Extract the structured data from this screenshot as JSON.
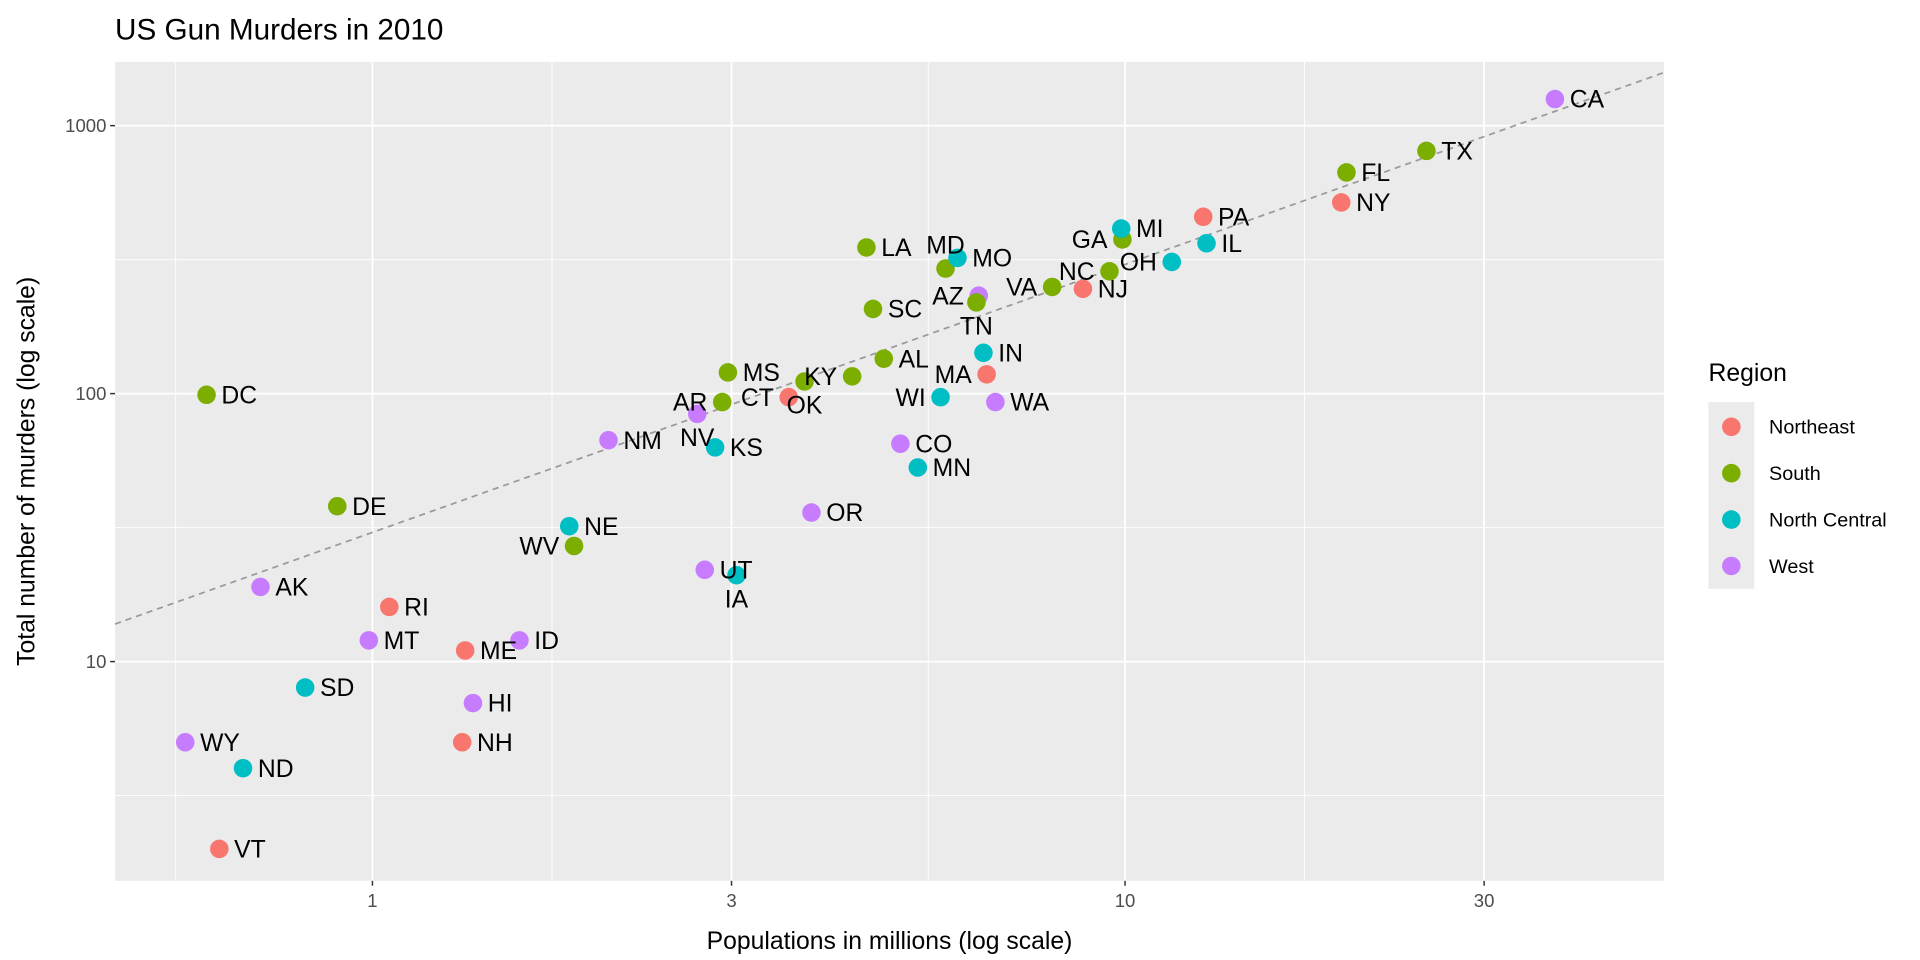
{
  "chart_data": {
    "type": "scatter",
    "title": "US Gun Murders in 2010",
    "xlabel": "Populations in millions (log scale)",
    "ylabel": "Total number of murders (log scale)",
    "x_scale": "log10",
    "y_scale": "log10",
    "xlim": [
      0.455,
      52
    ],
    "ylim": [
      1.52,
      1730
    ],
    "x_ticks": [
      {
        "value": 1,
        "label": "1"
      },
      {
        "value": 3,
        "label": "3"
      },
      {
        "value": 10,
        "label": "10"
      },
      {
        "value": 30,
        "label": "30"
      }
    ],
    "y_ticks": [
      {
        "value": 10,
        "label": "10"
      },
      {
        "value": 100,
        "label": "100"
      },
      {
        "value": 1000,
        "label": "1000"
      }
    ],
    "grid": true,
    "reference_line": {
      "type": "y = r * x",
      "r_per_million": 30.35,
      "style": "dashed",
      "color": "#999999"
    },
    "legend": {
      "title": "Region",
      "placement": "right",
      "entries": [
        {
          "name": "Northeast",
          "color": "#F8766D"
        },
        {
          "name": "South",
          "color": "#7CAE00"
        },
        {
          "name": "North Central",
          "color": "#00BFC4"
        },
        {
          "name": "West",
          "color": "#C77CFF"
        }
      ]
    },
    "points": [
      {
        "label": "AL",
        "x": 4.78,
        "y": 135,
        "region": "South"
      },
      {
        "label": "AK",
        "x": 0.71,
        "y": 19,
        "region": "West"
      },
      {
        "label": "AZ",
        "x": 6.392,
        "y": 232,
        "region": "West"
      },
      {
        "label": "AR",
        "x": 2.916,
        "y": 93,
        "region": "South"
      },
      {
        "label": "CA",
        "x": 37.254,
        "y": 1257,
        "region": "West"
      },
      {
        "label": "CO",
        "x": 5.029,
        "y": 65,
        "region": "West"
      },
      {
        "label": "CT",
        "x": 3.574,
        "y": 97,
        "region": "Northeast"
      },
      {
        "label": "DE",
        "x": 0.898,
        "y": 38,
        "region": "South"
      },
      {
        "label": "DC",
        "x": 0.602,
        "y": 99,
        "region": "South"
      },
      {
        "label": "FL",
        "x": 19.688,
        "y": 669,
        "region": "South"
      },
      {
        "label": "GA",
        "x": 9.92,
        "y": 376,
        "region": "South"
      },
      {
        "label": "HI",
        "x": 1.36,
        "y": 7,
        "region": "West"
      },
      {
        "label": "ID",
        "x": 1.568,
        "y": 12,
        "region": "West"
      },
      {
        "label": "IL",
        "x": 12.831,
        "y": 364,
        "region": "North Central"
      },
      {
        "label": "IN",
        "x": 6.484,
        "y": 142,
        "region": "North Central"
      },
      {
        "label": "IA",
        "x": 3.046,
        "y": 21,
        "region": "North Central"
      },
      {
        "label": "KS",
        "x": 2.853,
        "y": 63,
        "region": "North Central"
      },
      {
        "label": "KY",
        "x": 4.339,
        "y": 116,
        "region": "South"
      },
      {
        "label": "LA",
        "x": 4.533,
        "y": 351,
        "region": "South"
      },
      {
        "label": "ME",
        "x": 1.328,
        "y": 11,
        "region": "Northeast"
      },
      {
        "label": "MD",
        "x": 5.774,
        "y": 293,
        "region": "South"
      },
      {
        "label": "MA",
        "x": 6.548,
        "y": 118,
        "region": "Northeast"
      },
      {
        "label": "MI",
        "x": 9.884,
        "y": 413,
        "region": "North Central"
      },
      {
        "label": "MN",
        "x": 5.304,
        "y": 53,
        "region": "North Central"
      },
      {
        "label": "MS",
        "x": 2.967,
        "y": 120,
        "region": "South"
      },
      {
        "label": "MO",
        "x": 5.989,
        "y": 321,
        "region": "North Central"
      },
      {
        "label": "MT",
        "x": 0.989,
        "y": 12,
        "region": "West"
      },
      {
        "label": "NE",
        "x": 1.826,
        "y": 32,
        "region": "North Central"
      },
      {
        "label": "NV",
        "x": 2.701,
        "y": 84,
        "region": "West"
      },
      {
        "label": "NH",
        "x": 1.316,
        "y": 5,
        "region": "Northeast"
      },
      {
        "label": "NJ",
        "x": 8.792,
        "y": 246,
        "region": "Northeast"
      },
      {
        "label": "NM",
        "x": 2.059,
        "y": 67,
        "region": "West"
      },
      {
        "label": "NY",
        "x": 19.378,
        "y": 517,
        "region": "Northeast"
      },
      {
        "label": "NC",
        "x": 9.535,
        "y": 286,
        "region": "South"
      },
      {
        "label": "ND",
        "x": 0.673,
        "y": 4,
        "region": "North Central"
      },
      {
        "label": "OH",
        "x": 11.537,
        "y": 310,
        "region": "North Central"
      },
      {
        "label": "OK",
        "x": 3.751,
        "y": 111,
        "region": "South"
      },
      {
        "label": "OR",
        "x": 3.831,
        "y": 36,
        "region": "West"
      },
      {
        "label": "PA",
        "x": 12.702,
        "y": 457,
        "region": "Northeast"
      },
      {
        "label": "RI",
        "x": 1.053,
        "y": 16,
        "region": "Northeast"
      },
      {
        "label": "SC",
        "x": 4.625,
        "y": 207,
        "region": "South"
      },
      {
        "label": "SD",
        "x": 0.814,
        "y": 8,
        "region": "North Central"
      },
      {
        "label": "TN",
        "x": 6.346,
        "y": 219,
        "region": "South"
      },
      {
        "label": "TX",
        "x": 25.146,
        "y": 805,
        "region": "South"
      },
      {
        "label": "UT",
        "x": 2.764,
        "y": 22,
        "region": "West"
      },
      {
        "label": "VT",
        "x": 0.626,
        "y": 2,
        "region": "Northeast"
      },
      {
        "label": "VA",
        "x": 8.001,
        "y": 250,
        "region": "South"
      },
      {
        "label": "WA",
        "x": 6.725,
        "y": 93,
        "region": "West"
      },
      {
        "label": "WV",
        "x": 1.853,
        "y": 27,
        "region": "South"
      },
      {
        "label": "WI",
        "x": 5.687,
        "y": 97,
        "region": "North Central"
      },
      {
        "label": "WY",
        "x": 0.564,
        "y": 5,
        "region": "West"
      }
    ]
  }
}
